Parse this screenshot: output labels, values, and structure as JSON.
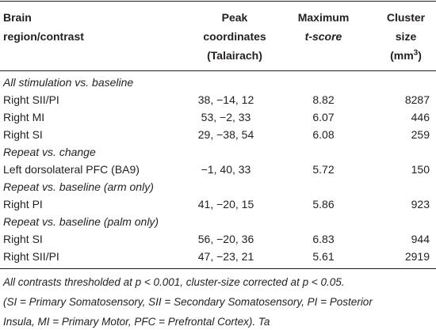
{
  "table": {
    "header": [
      [
        "Brain",
        "region/contrast"
      ],
      [
        "Peak",
        "coordinates",
        "(Talairach)"
      ],
      [
        "Maximum",
        "t-score"
      ],
      [
        "Cluster",
        "size",
        "(mm",
        "3",
        ")"
      ]
    ],
    "rows": [
      {
        "section": "All stimulation vs. baseline"
      },
      {
        "cells": [
          "Right SII/PI",
          "38, −14, 12",
          "8.82",
          "8287"
        ]
      },
      {
        "cells": [
          "Right MI",
          "53, −2, 33",
          "6.07",
          "446"
        ]
      },
      {
        "cells": [
          "Right SI",
          "29, −38, 54",
          "6.08",
          "259"
        ]
      },
      {
        "section": "Repeat vs. change"
      },
      {
        "cells": [
          "Left dorsolateral PFC (BA9)",
          "−1, 40, 33",
          "5.72",
          "150"
        ]
      },
      {
        "section": "Repeat vs. baseline (arm only)"
      },
      {
        "cells": [
          "Right PI",
          "41, −20, 15",
          "5.86",
          "923"
        ]
      },
      {
        "section": "Repeat vs. baseline (palm only)"
      },
      {
        "cells": [
          "Right SI",
          "56, −20, 36",
          "6.83",
          "944"
        ]
      },
      {
        "cells": [
          "Right SII/PI",
          "47, −23, 21",
          "5.61",
          "2919"
        ]
      }
    ],
    "footnote": [
      "All contrasts thresholded at p < 0.001, cluster-size corrected at p < 0.05.",
      "(SI = Primary Somatosensory, SII = Secondary Somatosensory, PI = Posterior",
      "Insula, MI = Primary Motor, PFC = Prefrontal Cortex). Ta"
    ]
  }
}
